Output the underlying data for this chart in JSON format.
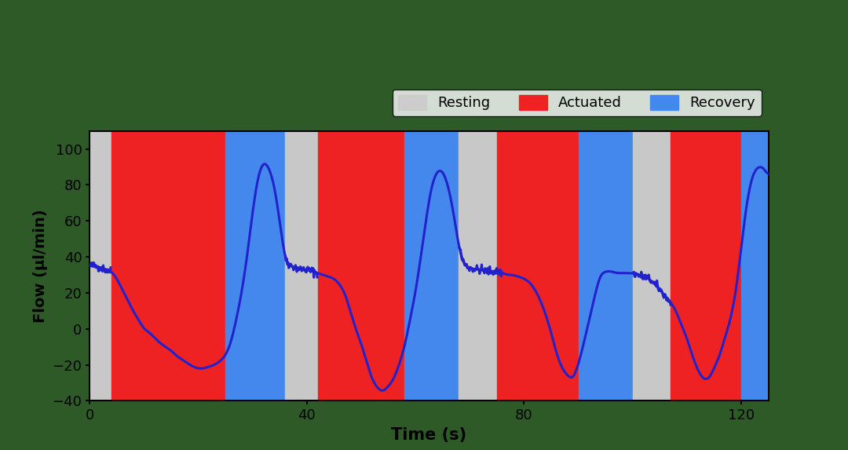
{
  "title": "",
  "xlabel": "Time (s)",
  "ylabel": "Flow (µl/min)",
  "xlim": [
    0,
    125
  ],
  "ylim": [
    -40,
    110
  ],
  "yticks": [
    -40,
    -20,
    0,
    20,
    40,
    60,
    80,
    100
  ],
  "xticks": [
    0,
    40,
    80,
    120
  ],
  "background_color": "#2d5a27",
  "plot_bg_color": "#2d5a27",
  "line_color": "#2222cc",
  "line_width": 2.2,
  "legend_items": [
    {
      "label": "Resting",
      "color": "#cccccc"
    },
    {
      "label": "Actuated",
      "color": "#ee2222"
    },
    {
      "label": "Recovery",
      "color": "#4488ee"
    }
  ],
  "bands": [
    {
      "start": 0,
      "end": 4,
      "color": "#c8c8c8",
      "alpha": 1.0
    },
    {
      "start": 4,
      "end": 25,
      "color": "#ee2222",
      "alpha": 1.0
    },
    {
      "start": 25,
      "end": 36,
      "color": "#4488ee",
      "alpha": 1.0
    },
    {
      "start": 36,
      "end": 42,
      "color": "#c8c8c8",
      "alpha": 1.0
    },
    {
      "start": 42,
      "end": 58,
      "color": "#ee2222",
      "alpha": 1.0
    },
    {
      "start": 58,
      "end": 68,
      "color": "#4488ee",
      "alpha": 1.0
    },
    {
      "start": 68,
      "end": 75,
      "color": "#c8c8c8",
      "alpha": 1.0
    },
    {
      "start": 75,
      "end": 90,
      "color": "#ee2222",
      "alpha": 1.0
    },
    {
      "start": 90,
      "end": 100,
      "color": "#4488ee",
      "alpha": 1.0
    },
    {
      "start": 100,
      "end": 107,
      "color": "#c8c8c8",
      "alpha": 1.0
    },
    {
      "start": 107,
      "end": 120,
      "color": "#ee2222",
      "alpha": 1.0
    },
    {
      "start": 120,
      "end": 125,
      "color": "#4488ee",
      "alpha": 1.0
    }
  ],
  "curve_points": {
    "t": [
      0,
      1,
      2,
      3,
      4,
      5,
      6,
      7,
      8,
      9,
      10,
      11,
      12,
      13,
      14,
      15,
      16,
      17,
      18,
      19,
      20,
      21,
      22,
      23,
      24,
      25,
      26,
      27,
      28,
      29,
      30,
      31,
      32,
      33,
      34,
      35,
      36,
      37,
      38,
      39,
      40,
      41,
      42,
      43,
      44,
      45,
      46,
      47,
      48,
      49,
      50,
      51,
      52,
      53,
      54,
      55,
      56,
      57,
      58,
      59,
      60,
      61,
      62,
      63,
      64,
      65,
      66,
      67,
      68,
      69,
      70,
      71,
      72,
      73,
      74,
      75,
      76,
      77,
      78,
      79,
      80,
      81,
      82,
      83,
      84,
      85,
      86,
      87,
      88,
      89,
      90,
      91,
      92,
      93,
      94,
      95,
      96,
      97,
      98,
      99,
      100,
      101,
      102,
      103,
      104,
      105,
      106,
      107,
      108,
      109,
      110,
      111,
      112,
      113,
      114,
      115,
      116,
      117,
      118,
      119,
      120,
      121,
      122,
      123,
      124,
      125
    ],
    "flow": [
      35,
      35,
      34,
      33,
      32,
      28,
      22,
      16,
      10,
      5,
      0,
      -2,
      -5,
      -8,
      -10,
      -12,
      -15,
      -17,
      -19,
      -21,
      -22,
      -22,
      -21,
      -20,
      -18,
      -15,
      -8,
      5,
      20,
      40,
      65,
      85,
      93,
      90,
      80,
      60,
      38,
      35,
      34,
      33,
      33,
      32,
      31,
      30,
      29,
      28,
      25,
      20,
      10,
      0,
      -8,
      -18,
      -28,
      -33,
      -35,
      -32,
      -28,
      -20,
      -10,
      5,
      20,
      40,
      62,
      80,
      88,
      88,
      80,
      65,
      45,
      35,
      34,
      33,
      33,
      32,
      32,
      32,
      31,
      30,
      30,
      29,
      28,
      26,
      22,
      16,
      8,
      -2,
      -14,
      -22,
      -26,
      -28,
      -20,
      -8,
      5,
      18,
      30,
      32,
      32,
      31,
      31,
      31,
      31,
      30,
      29,
      28,
      25,
      22,
      18,
      15,
      10,
      2,
      -5,
      -15,
      -23,
      -28,
      -28,
      -22,
      -15,
      -5,
      5,
      20,
      45,
      70,
      85,
      90,
      90,
      85
    ]
  }
}
